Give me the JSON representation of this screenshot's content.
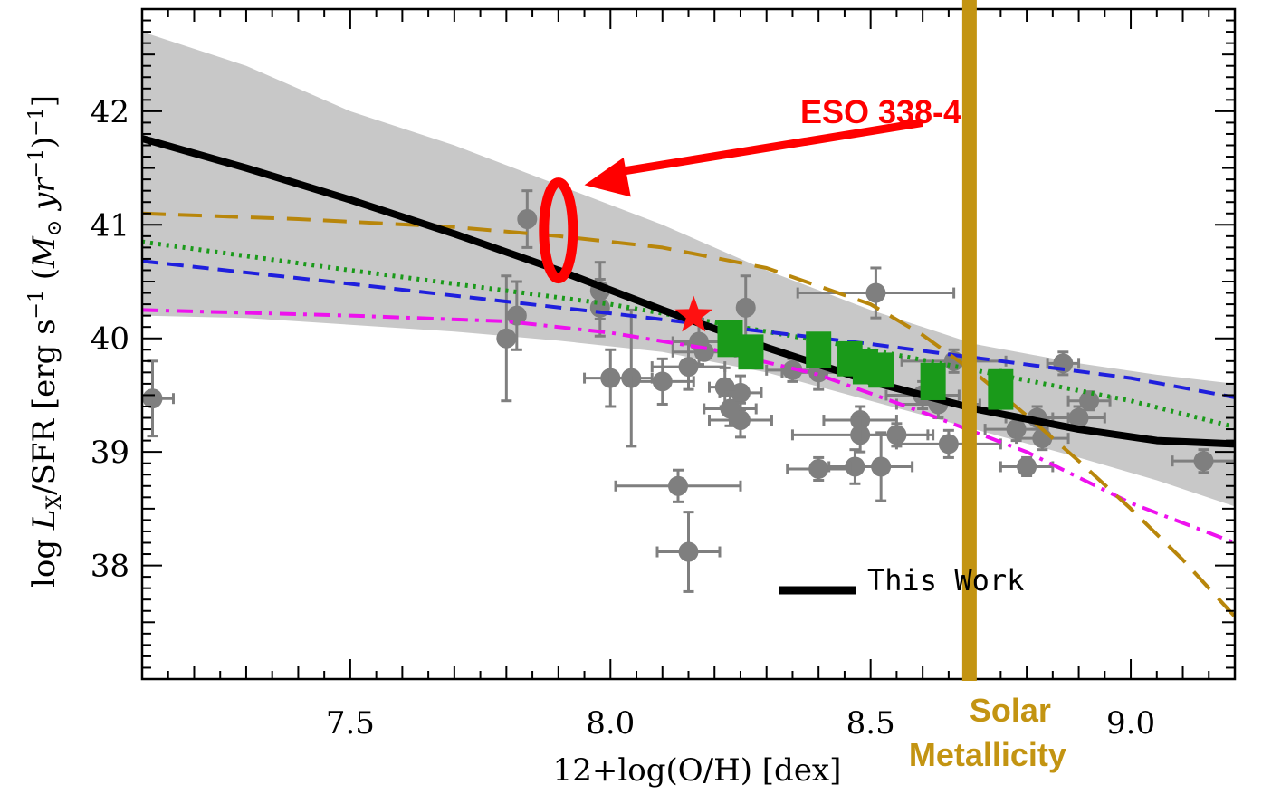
{
  "chart_data": {
    "type": "scatter",
    "xlabel": "12+log(O/H) [dex]",
    "ylabel": "log L_X/SFR [erg s^-1 (M_⊙ yr^-1)^-1]",
    "xlim": [
      7.1,
      9.2
    ],
    "ylim": [
      37,
      42.9
    ],
    "x_ticks": [
      7.5,
      8.0,
      8.5,
      9.0
    ],
    "x_tick_labels": [
      "7.5",
      "8.0",
      "8.5",
      "9.0"
    ],
    "y_ticks": [
      38,
      39,
      40,
      41,
      42
    ],
    "y_tick_labels": [
      "38",
      "39",
      "40",
      "41",
      "42"
    ],
    "grid": false,
    "legend": {
      "placement": "bottom-center",
      "entries": [
        {
          "label": "This Work",
          "color": "#000000"
        }
      ]
    },
    "colors": {
      "this_work": "#000000",
      "band": "#c8c8c8",
      "orange_dashed": "#b8860b",
      "green_dotted": "#1a9a1a",
      "blue_dashed": "#1f1fdd",
      "magenta_dashdot": "#ee11ee",
      "gray_points": "#7f7f7f",
      "green_squares": "#1a9a1a",
      "solar_line": "#c39412",
      "annotation": "#ff0000"
    },
    "series": [
      {
        "style": "black-solid",
        "x": [
          7.1,
          7.3,
          7.5,
          7.7,
          7.9,
          8.1,
          8.3,
          8.5,
          8.7,
          8.9,
          9.05,
          9.2
        ],
        "y": [
          41.76,
          41.5,
          41.22,
          40.92,
          40.6,
          40.25,
          39.92,
          39.62,
          39.38,
          39.2,
          39.1,
          39.07
        ]
      },
      {
        "style": "gray-band",
        "x": [
          7.1,
          7.3,
          7.5,
          7.7,
          7.9,
          8.1,
          8.3,
          8.5,
          8.7,
          8.9,
          9.05,
          9.2
        ],
        "y_upper": [
          42.7,
          42.4,
          42.0,
          41.7,
          41.35,
          41.0,
          40.6,
          40.25,
          39.95,
          39.78,
          39.68,
          39.6
        ],
        "y_lower": [
          40.2,
          40.18,
          40.12,
          40.06,
          39.98,
          39.88,
          39.7,
          39.45,
          39.2,
          38.95,
          38.75,
          38.52
        ]
      },
      {
        "style": "orange-dashed",
        "x": [
          7.1,
          7.4,
          7.7,
          7.9,
          8.1,
          8.3,
          8.5,
          8.6,
          8.7,
          8.8,
          8.9,
          9.0,
          9.1,
          9.2
        ],
        "y": [
          41.1,
          41.05,
          40.98,
          40.9,
          40.8,
          40.62,
          40.3,
          40.03,
          39.7,
          39.32,
          38.92,
          38.5,
          38.05,
          37.55
        ]
      },
      {
        "style": "green-dotted",
        "x": [
          7.1,
          7.5,
          8.0,
          8.5,
          9.0,
          9.2
        ],
        "y": [
          40.85,
          40.6,
          40.3,
          39.9,
          39.45,
          39.22
        ]
      },
      {
        "style": "blue-dashed",
        "x": [
          7.1,
          7.5,
          8.0,
          8.5,
          9.0,
          9.2
        ],
        "y": [
          40.68,
          40.48,
          40.22,
          39.95,
          39.65,
          39.48
        ]
      },
      {
        "style": "magenta-dashdot",
        "x": [
          7.1,
          7.5,
          7.8,
          8.0,
          8.2,
          8.4,
          8.6,
          8.8,
          9.0,
          9.2
        ],
        "y": [
          40.25,
          40.2,
          40.15,
          40.05,
          39.9,
          39.68,
          39.35,
          39.0,
          38.55,
          38.2
        ]
      }
    ],
    "points": [
      {
        "x": 7.12,
        "y": 39.47,
        "xerr": 0.04,
        "yerr": 0.33
      },
      {
        "x": 7.84,
        "y": 41.05,
        "xerr": 0.0,
        "yerr": 0.25
      },
      {
        "x": 7.82,
        "y": 40.2,
        "xerr": 0.0,
        "yerr": 0.3
      },
      {
        "x": 7.8,
        "y": 40.0,
        "xerr": 0.0,
        "yerr": 0.55
      },
      {
        "x": 7.98,
        "y": 40.42,
        "xerr": 0.0,
        "yerr": 0.25
      },
      {
        "x": 7.98,
        "y": 40.27,
        "xerr": 0.0,
        "yerr": 0.25
      },
      {
        "x": 8.0,
        "y": 39.65,
        "xerr": 0.05,
        "yerr": 0.25
      },
      {
        "x": 8.04,
        "y": 39.65,
        "xerr": 0.04,
        "yerr": 0.6
      },
      {
        "x": 8.1,
        "y": 39.62,
        "xerr": 0.06,
        "yerr": 0.2
      },
      {
        "x": 8.15,
        "y": 39.75,
        "xerr": 0.07,
        "yerr": 0.2
      },
      {
        "x": 8.17,
        "y": 39.97,
        "xerr": 0.05,
        "yerr": 0.2
      },
      {
        "x": 8.18,
        "y": 39.88,
        "xerr": 0.06,
        "yerr": 0.0
      },
      {
        "x": 8.13,
        "y": 38.7,
        "xerr": 0.12,
        "yerr": 0.14
      },
      {
        "x": 8.15,
        "y": 38.12,
        "xerr": 0.06,
        "yerr": 0.35
      },
      {
        "x": 8.26,
        "y": 40.27,
        "xerr": 0.0,
        "yerr": 0.28
      },
      {
        "x": 8.22,
        "y": 39.57,
        "xerr": 0.03,
        "yerr": 0.17
      },
      {
        "x": 8.25,
        "y": 39.52,
        "xerr": 0.04,
        "yerr": 0.15
      },
      {
        "x": 8.23,
        "y": 39.38,
        "xerr": 0.05,
        "yerr": 0.15
      },
      {
        "x": 8.25,
        "y": 39.28,
        "xerr": 0.06,
        "yerr": 0.15
      },
      {
        "x": 8.35,
        "y": 39.72,
        "xerr": 0.05,
        "yerr": 0.1
      },
      {
        "x": 8.4,
        "y": 39.7,
        "xerr": 0.07,
        "yerr": 0.15
      },
      {
        "x": 8.4,
        "y": 38.85,
        "xerr": 0.06,
        "yerr": 0.1
      },
      {
        "x": 8.47,
        "y": 38.87,
        "xerr": 0.05,
        "yerr": 0.15
      },
      {
        "x": 8.51,
        "y": 40.4,
        "xerr": 0.15,
        "yerr": 0.22
      },
      {
        "x": 8.48,
        "y": 39.28,
        "xerr": 0.07,
        "yerr": 0.12
      },
      {
        "x": 8.48,
        "y": 39.15,
        "xerr": 0.13,
        "yerr": 0.15
      },
      {
        "x": 8.52,
        "y": 38.87,
        "xerr": 0.06,
        "yerr": 0.3
      },
      {
        "x": 8.55,
        "y": 39.15,
        "xerr": 0.07,
        "yerr": 0.1
      },
      {
        "x": 8.6,
        "y": 39.5,
        "xerr": 0.07,
        "yerr": 0.12
      },
      {
        "x": 8.63,
        "y": 39.42,
        "xerr": 0.08,
        "yerr": 0.12
      },
      {
        "x": 8.65,
        "y": 39.07,
        "xerr": 0.1,
        "yerr": 0.12
      },
      {
        "x": 8.66,
        "y": 39.8,
        "xerr": 0.1,
        "yerr": 0.1
      },
      {
        "x": 8.78,
        "y": 39.2,
        "xerr": 0.06,
        "yerr": 0.1
      },
      {
        "x": 8.8,
        "y": 38.87,
        "xerr": 0.05,
        "yerr": 0.08
      },
      {
        "x": 8.82,
        "y": 39.3,
        "xerr": 0.06,
        "yerr": 0.1
      },
      {
        "x": 8.83,
        "y": 39.12,
        "xerr": 0.05,
        "yerr": 0.1
      },
      {
        "x": 8.87,
        "y": 39.78,
        "xerr": 0.03,
        "yerr": 0.1
      },
      {
        "x": 8.9,
        "y": 39.3,
        "xerr": 0.05,
        "yerr": 0.1
      },
      {
        "x": 8.92,
        "y": 39.45,
        "xerr": 0.04,
        "yerr": 0.08
      },
      {
        "x": 9.14,
        "y": 38.92,
        "xerr": 0.06,
        "yerr": 0.1
      }
    ],
    "green_squares": [
      {
        "x": 8.23,
        "y": 40.0,
        "yerr": 0.12
      },
      {
        "x": 8.27,
        "y": 39.88,
        "yerr": 0.08
      },
      {
        "x": 8.4,
        "y": 39.9,
        "yerr": 0.1
      },
      {
        "x": 8.46,
        "y": 39.82,
        "yerr": 0.08
      },
      {
        "x": 8.49,
        "y": 39.75,
        "yerr": 0.08
      },
      {
        "x": 8.52,
        "y": 39.72,
        "yerr": 0.08
      },
      {
        "x": 8.62,
        "y": 39.62,
        "yerr": 0.12
      },
      {
        "x": 8.75,
        "y": 39.55,
        "yerr": 0.18
      }
    ],
    "star": {
      "x": 8.16,
      "y": 40.2
    },
    "solar_line_x": 8.69,
    "annotations": [
      {
        "text": "ESO 338-4",
        "x": 7.9,
        "y": 40.95
      },
      {
        "text": "Solar Metallicity",
        "x": 8.69
      }
    ]
  }
}
